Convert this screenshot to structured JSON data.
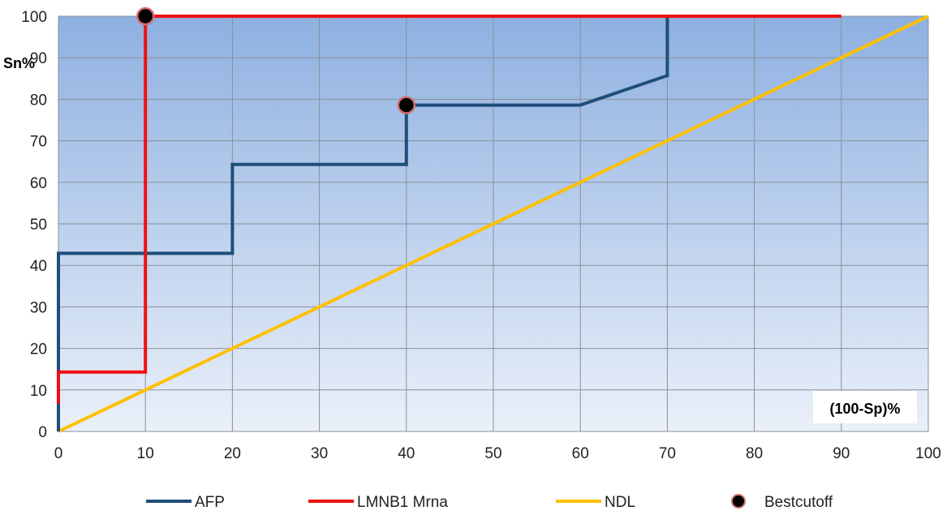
{
  "chart_data": {
    "type": "line",
    "xlabel": "(100-Sp)%",
    "ylabel": "Sn%",
    "xlim": [
      0,
      100
    ],
    "ylim": [
      0,
      100
    ],
    "x_ticks": [
      0,
      10,
      20,
      30,
      40,
      50,
      60,
      70,
      80,
      90,
      100
    ],
    "y_ticks": [
      0,
      10,
      20,
      30,
      40,
      50,
      60,
      70,
      80,
      90,
      100
    ],
    "grid": true,
    "legend_position": "bottom",
    "series": [
      {
        "name": "AFP",
        "color": "#1f4e79",
        "x": [
          0,
          0,
          20,
          20,
          40,
          40,
          60,
          70,
          70
        ],
        "y": [
          0,
          42.9,
          42.9,
          64.3,
          64.3,
          78.6,
          78.6,
          85.7,
          100
        ]
      },
      {
        "name": "LMNB1 Mrna",
        "color": "#ee1111",
        "x": [
          0,
          0,
          10,
          10,
          90
        ],
        "y": [
          6.7,
          14.3,
          14.3,
          100,
          100
        ]
      },
      {
        "name": "NDL",
        "color": "#ffc000",
        "x": [
          0,
          100
        ],
        "y": [
          0,
          100
        ]
      },
      {
        "name": "Bestcutoff",
        "type": "scatter",
        "color": "#000000",
        "edge_color": "#d07070",
        "x": [
          10,
          40
        ],
        "y": [
          100,
          78.6
        ]
      }
    ]
  }
}
